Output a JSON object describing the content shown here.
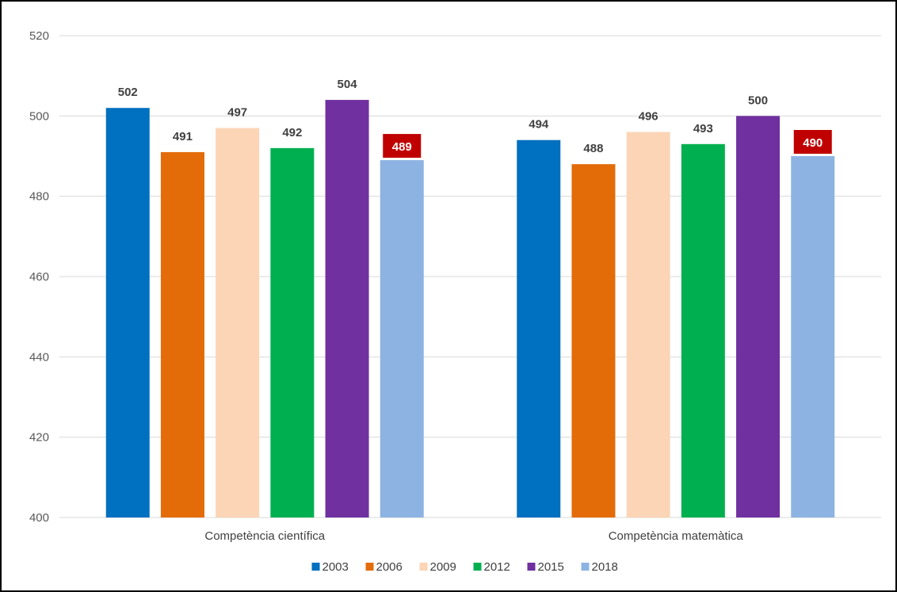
{
  "chart_data": {
    "type": "bar",
    "title": "",
    "xlabel": "",
    "ylabel": "",
    "ylim": [
      400,
      520
    ],
    "yticks": [
      400,
      420,
      440,
      460,
      480,
      500,
      520
    ],
    "grid": true,
    "legend_position": "bottom",
    "categories": [
      "Competència científica",
      "Competència matemàtica"
    ],
    "series": [
      {
        "name": "2003",
        "color": "#0070C0",
        "values": [
          502,
          494
        ]
      },
      {
        "name": "2006",
        "color": "#E36C09",
        "values": [
          491,
          488
        ]
      },
      {
        "name": "2009",
        "color": "#FBD5B5",
        "values": [
          497,
          496
        ]
      },
      {
        "name": "2012",
        "color": "#00B050",
        "values": [
          492,
          493
        ]
      },
      {
        "name": "2015",
        "color": "#7030A0",
        "values": [
          504,
          500
        ]
      },
      {
        "name": "2018",
        "color": "#8DB3E2",
        "values": [
          489,
          490
        ],
        "label_highlight": true,
        "highlight_color": "#C00000"
      }
    ]
  }
}
